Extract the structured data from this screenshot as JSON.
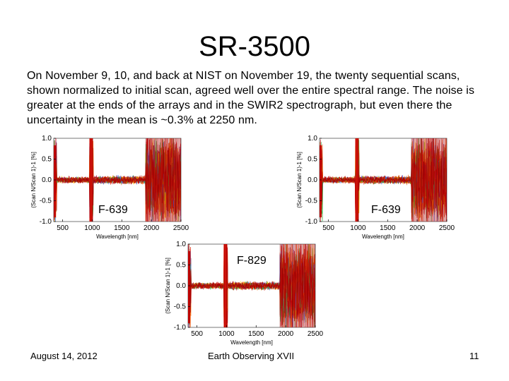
{
  "slide": {
    "title": "SR-3500",
    "body": "On November 9, 10, and back at NIST on November 19, the twenty sequential scans, shown normalized to initial scan, agreed well over the entire spectral range. The noise is greater at the ends of the arrays and in the SWIR2 spectrograph, but even there the uncertainty in the mean is ~0.3% at 2250 nm.",
    "footer_left": "August 14, 2012",
    "footer_center": "Earth Observing XVII",
    "footer_right": "11"
  },
  "colors": {
    "noise_palette": [
      "#c00000",
      "#a00000",
      "#e02010",
      "#ff6a00",
      "#ffd000",
      "#3070ff",
      "#20b040",
      "#b00020",
      "#d04000"
    ]
  },
  "chart_data": [
    {
      "type": "line",
      "label": "F-639",
      "xlabel": "Wavelength [nm]",
      "ylabel": "(Scan N/Scan 1)-1 [%]",
      "xlim": [
        350,
        2500
      ],
      "ylim": [
        -1.0,
        1.0
      ],
      "xticks": [
        500,
        1000,
        1500,
        2000,
        2500
      ],
      "yticks": [
        1.0,
        0.5,
        0.0,
        -0.5,
        -1.0
      ],
      "series_count": 20,
      "approx_noise_band_pct": [
        {
          "range_nm": [
            350,
            400
          ],
          "amplitude": 1.0
        },
        {
          "range_nm": [
            400,
            950
          ],
          "amplitude": 0.12
        },
        {
          "range_nm": [
            950,
            1020
          ],
          "amplitude": 1.0
        },
        {
          "range_nm": [
            1020,
            1900
          ],
          "amplitude": 0.15
        },
        {
          "range_nm": [
            1900,
            2500
          ],
          "amplitude": 1.0
        }
      ]
    },
    {
      "type": "line",
      "label": "F-639",
      "xlabel": "Wavelength [nm]",
      "ylabel": "(Scan N/Scan 1)-1 [%]",
      "xlim": [
        350,
        2500
      ],
      "ylim": [
        -1.0,
        1.0
      ],
      "xticks": [
        500,
        1000,
        1500,
        2000,
        2500
      ],
      "yticks": [
        1.0,
        0.5,
        0.0,
        -0.5,
        -1.0
      ],
      "series_count": 20,
      "approx_noise_band_pct": [
        {
          "range_nm": [
            350,
            400
          ],
          "amplitude": 1.0
        },
        {
          "range_nm": [
            400,
            950
          ],
          "amplitude": 0.12
        },
        {
          "range_nm": [
            950,
            1020
          ],
          "amplitude": 1.0
        },
        {
          "range_nm": [
            1020,
            1900
          ],
          "amplitude": 0.15
        },
        {
          "range_nm": [
            1900,
            2500
          ],
          "amplitude": 1.0
        }
      ]
    },
    {
      "type": "line",
      "label": "F-829",
      "xlabel": "Wavelength [nm]",
      "ylabel": "(Scan N/Scan 1)-1 [%]",
      "xlim": [
        350,
        2500
      ],
      "ylim": [
        -1.0,
        1.0
      ],
      "xticks": [
        500,
        1000,
        1500,
        2000,
        2500
      ],
      "yticks": [
        1.0,
        0.5,
        0.0,
        -0.5,
        -1.0
      ],
      "series_count": 20,
      "approx_noise_band_pct": [
        {
          "range_nm": [
            350,
            400
          ],
          "amplitude": 1.0
        },
        {
          "range_nm": [
            400,
            950
          ],
          "amplitude": 0.12
        },
        {
          "range_nm": [
            950,
            1020
          ],
          "amplitude": 1.0
        },
        {
          "range_nm": [
            1020,
            1900
          ],
          "amplitude": 0.15
        },
        {
          "range_nm": [
            1900,
            2500
          ],
          "amplitude": 1.0
        }
      ]
    }
  ]
}
